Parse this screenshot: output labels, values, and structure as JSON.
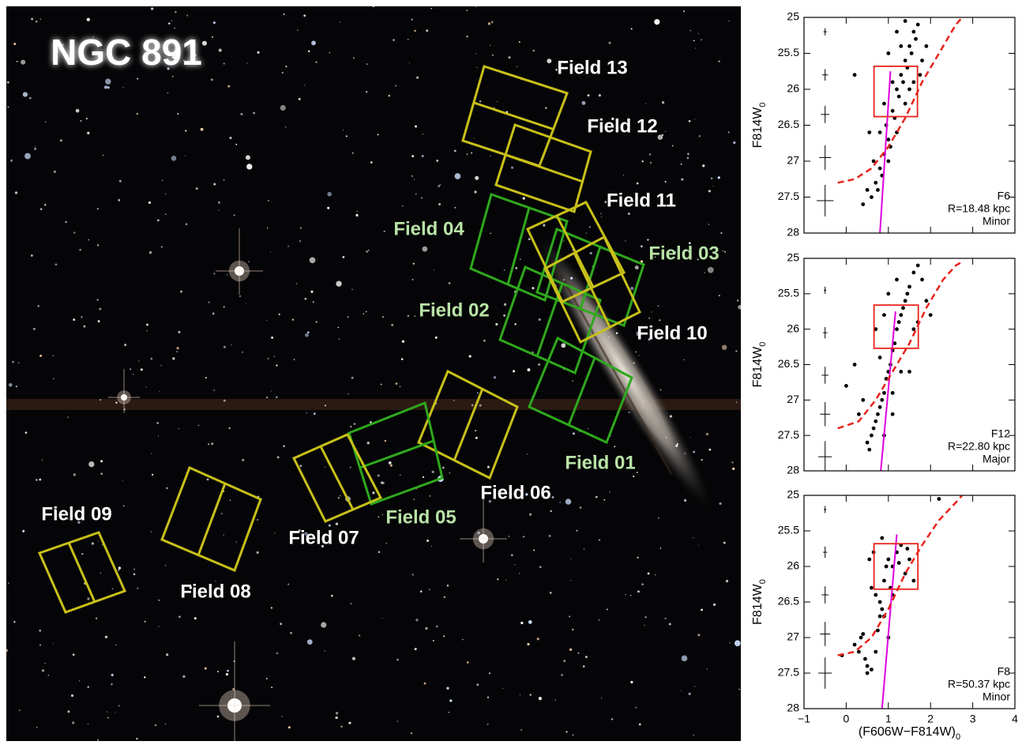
{
  "image": {
    "title": "NGC 891",
    "fields": [
      "Field 13",
      "Field 12",
      "Field 11",
      "Field 04",
      "Field 03",
      "Field 02",
      "Field 10",
      "Field 01",
      "Field 06",
      "Field 05",
      "Field 07",
      "Field 09",
      "Field 08"
    ]
  },
  "chart_data": [
    {
      "type": "scatter",
      "ylabel": {
        "text": "F814W",
        "sub": "0"
      },
      "xlim": [
        -1,
        4
      ],
      "ylim": [
        28,
        25
      ],
      "xticks": [
        -1,
        0,
        1,
        2,
        3,
        4
      ],
      "yticks": [
        25,
        25.5,
        26,
        26.5,
        27,
        27.5,
        28
      ],
      "show_xtick_labels": false,
      "points": {
        "x": [
          0.6,
          0.7,
          0.8,
          0.9,
          1.0,
          0.95,
          1.1,
          1.2,
          1.3,
          1.4,
          1.5,
          1.6,
          1.7,
          0.75,
          0.85,
          1.05,
          1.15,
          1.25,
          1.35,
          1.45,
          1.55,
          1.65,
          0.4,
          0.5,
          1.0,
          1.2,
          1.4,
          1.6,
          1.8,
          1.3,
          0.8,
          1.1,
          0.65,
          0.9,
          1.5,
          1.75,
          1.9,
          1.2,
          0.2,
          0.55,
          1.0,
          1.4
        ],
        "y": [
          27.5,
          27.3,
          27.1,
          26.9,
          26.7,
          26.5,
          26.3,
          26.0,
          25.8,
          25.6,
          25.4,
          25.2,
          25.1,
          27.4,
          27.2,
          26.8,
          26.4,
          26.1,
          25.9,
          25.7,
          25.5,
          25.3,
          27.6,
          27.4,
          27.0,
          26.6,
          26.2,
          25.9,
          25.6,
          25.4,
          26.6,
          25.9,
          27.0,
          26.2,
          26.0,
          25.8,
          25.4,
          25.2,
          25.8,
          26.6,
          25.5,
          25.05
        ]
      },
      "box": {
        "x": [
          0.66,
          1.69
        ],
        "y": [
          25.68,
          26.38
        ]
      },
      "isochrone": {
        "x": [
          0.8,
          1.05
        ],
        "y": [
          28,
          25.75
        ]
      },
      "limit": {
        "x": [
          -0.2,
          0.2,
          0.6,
          1.0,
          1.4,
          1.8,
          2.2,
          2.6,
          2.75
        ],
        "y": [
          27.3,
          27.25,
          27.1,
          26.8,
          26.4,
          25.9,
          25.5,
          25.1,
          25
        ]
      },
      "errors": {
        "x": -0.5,
        "y": [
          25.2,
          25.8,
          26.35,
          26.95,
          27.55
        ],
        "xerr": [
          0.04,
          0.07,
          0.1,
          0.14,
          0.2
        ],
        "yerr": [
          0.05,
          0.08,
          0.12,
          0.17,
          0.22
        ]
      },
      "annotations": [
        "F6",
        "R=18.48 kpc",
        "Minor"
      ]
    },
    {
      "type": "scatter",
      "ylabel": {
        "text": "F814W",
        "sub": "0"
      },
      "xlim": [
        -1,
        4
      ],
      "ylim": [
        28,
        25
      ],
      "xticks": [
        -1,
        0,
        1,
        2,
        3,
        4
      ],
      "yticks": [
        25,
        25.5,
        26,
        26.5,
        27,
        27.5,
        28
      ],
      "show_xtick_labels": false,
      "points": {
        "x": [
          0.5,
          0.6,
          0.7,
          0.8,
          0.9,
          1.0,
          1.1,
          1.2,
          1.3,
          1.4,
          1.5,
          1.6,
          1.7,
          1.8,
          0.55,
          0.65,
          0.75,
          0.85,
          0.95,
          1.05,
          1.15,
          1.25,
          1.35,
          1.45,
          0.3,
          0.0,
          0.2,
          0.9,
          1.1,
          1.3,
          1.6,
          1.9,
          2.0,
          0.8,
          1.0,
          1.2,
          0.7,
          1.5,
          1.7,
          0.4,
          1.1,
          0.9
        ],
        "y": [
          27.6,
          27.5,
          27.3,
          27.1,
          26.9,
          26.6,
          26.3,
          26.0,
          25.8,
          25.6,
          25.4,
          25.2,
          25.1,
          25.3,
          27.7,
          27.4,
          27.2,
          27.0,
          26.7,
          26.5,
          26.2,
          25.9,
          25.7,
          25.5,
          27.2,
          26.8,
          26.5,
          27.5,
          27.2,
          26.6,
          26.0,
          25.6,
          25.8,
          26.4,
          25.5,
          25.3,
          26.0,
          26.6,
          25.9,
          27.0,
          26.9,
          25.8
        ]
      },
      "box": {
        "x": [
          0.66,
          1.71
        ],
        "y": [
          25.66,
          26.27
        ]
      },
      "isochrone": {
        "x": [
          0.82,
          1.17
        ],
        "y": [
          28,
          25.75
        ]
      },
      "limit": {
        "x": [
          -0.2,
          0.3,
          0.7,
          1.1,
          1.5,
          1.9,
          2.3,
          2.6,
          2.75
        ],
        "y": [
          27.4,
          27.3,
          27.0,
          26.6,
          26.2,
          25.7,
          25.3,
          25.1,
          25.05
        ]
      },
      "errors": {
        "x": -0.5,
        "y": [
          25.45,
          26.05,
          26.65,
          27.2,
          27.8
        ],
        "xerr": [
          0.03,
          0.05,
          0.08,
          0.12,
          0.16
        ],
        "yerr": [
          0.05,
          0.08,
          0.12,
          0.17,
          0.22
        ]
      },
      "annotations": [
        "F12",
        "R=22.80 kpc",
        "Major"
      ]
    },
    {
      "type": "scatter",
      "ylabel": {
        "text": "F814W",
        "sub": "0"
      },
      "xlabel": {
        "text": "(F606W−F814W)",
        "sub": "0"
      },
      "xlim": [
        -1,
        4
      ],
      "ylim": [
        28,
        25
      ],
      "show_xtick_labels": true,
      "xticks": [
        {
          "value": -1,
          "label": "−1"
        },
        0,
        1,
        2,
        3,
        4
      ],
      "yticks": [
        25,
        25.5,
        26,
        26.5,
        27,
        27.5,
        28
      ],
      "points": {
        "x": [
          -0.1,
          0.2,
          0.4,
          0.5,
          0.6,
          0.7,
          0.75,
          0.8,
          0.85,
          0.9,
          0.95,
          1.0,
          1.05,
          1.1,
          1.2,
          1.3,
          1.4,
          1.5,
          0.65,
          0.55,
          0.45,
          0.35,
          0.9,
          1.1,
          1.25,
          1.45,
          1.6,
          0.3,
          0.8,
          2.2,
          1.0,
          0.7,
          0.85,
          0.6,
          0.5
        ],
        "y": [
          27.25,
          27.1,
          26.95,
          27.4,
          27.45,
          27.2,
          26.9,
          26.5,
          26.6,
          26.2,
          26.0,
          25.9,
          26.3,
          26.0,
          25.8,
          25.7,
          26.1,
          25.9,
          25.8,
          25.9,
          27.3,
          27.0,
          26.7,
          26.4,
          25.95,
          25.75,
          26.2,
          27.2,
          26.7,
          25.05,
          27.0,
          26.4,
          25.6,
          26.3,
          27.5
        ]
      },
      "box": {
        "x": [
          0.66,
          1.7
        ],
        "y": [
          25.68,
          26.32
        ]
      },
      "isochrone": {
        "x": [
          0.85,
          1.2
        ],
        "y": [
          28,
          25.55
        ]
      },
      "limit": {
        "x": [
          -0.2,
          0.2,
          0.6,
          1.0,
          1.4,
          1.8,
          2.2,
          2.6,
          2.75
        ],
        "y": [
          27.25,
          27.2,
          27.0,
          26.6,
          26.1,
          25.7,
          25.35,
          25.1,
          25
        ]
      },
      "errors": {
        "x": -0.5,
        "y": [
          25.2,
          25.8,
          26.4,
          26.95,
          27.5
        ],
        "xerr": [
          0.03,
          0.05,
          0.08,
          0.12,
          0.16
        ],
        "yerr": [
          0.05,
          0.08,
          0.12,
          0.17,
          0.22
        ]
      },
      "annotations": [
        "F8",
        "R=50.37 kpc",
        "Minor"
      ]
    }
  ]
}
